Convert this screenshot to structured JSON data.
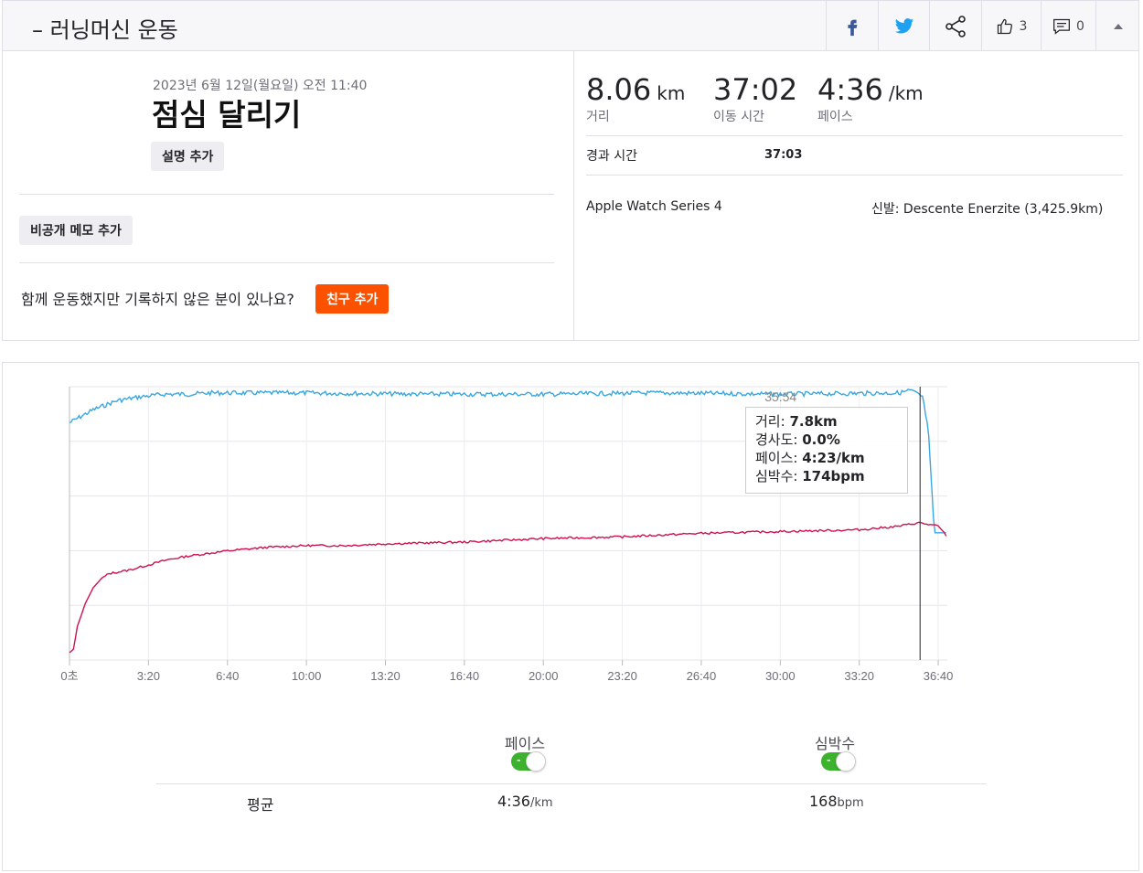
{
  "header": {
    "title": "– 러닝머신 운동",
    "kudos_count": "3",
    "comment_count": "0"
  },
  "activity": {
    "date": "2023년 6월 12일(월요일) 오전 11:40",
    "name": "점심 달리기",
    "add_description": "설명 추가",
    "add_private_note": "비공개 메모 추가",
    "friends_prompt": "함께 운동했지만 기록하지 않은 분이 있나요?",
    "add_friends": "친구 추가"
  },
  "stats": {
    "distance_value": "8.06",
    "distance_unit": "km",
    "distance_label": "거리",
    "moving_time_value": "37:02",
    "moving_time_label": "이동 시간",
    "pace_value": "4:36",
    "pace_unit": "/km",
    "pace_label": "페이스",
    "elapsed_label": "경과 시간",
    "elapsed_value": "37:03",
    "device": "Apple Watch Series 4",
    "shoes": "신발: Descente Enerzite (3,425.9km)"
  },
  "chart_data": {
    "type": "line",
    "x_unit": "seconds",
    "x_ticks": [
      "0초",
      "3:20",
      "6:40",
      "10:00",
      "13:20",
      "16:40",
      "20:00",
      "23:20",
      "26:40",
      "30:00",
      "33:20",
      "36:40"
    ],
    "xlim": [
      0,
      2223
    ],
    "series": [
      {
        "name": "페이스",
        "color": "#3aa7e0",
        "unit": "/km",
        "x": [
          0,
          60,
          120,
          180,
          240,
          300,
          360,
          480,
          600,
          900,
          1200,
          1500,
          1800,
          2100,
          2130,
          2160,
          2175,
          2190,
          2223
        ],
        "y": [
          4.55,
          4.45,
          4.38,
          4.35,
          4.33,
          4.33,
          4.32,
          4.32,
          4.32,
          4.33,
          4.33,
          4.32,
          4.33,
          4.32,
          4.3,
          4.35,
          4.6,
          5.4,
          5.4
        ]
      },
      {
        "name": "심박수",
        "color": "#d0114d",
        "unit": "bpm",
        "x": [
          0,
          10,
          20,
          40,
          60,
          80,
          100,
          150,
          200,
          250,
          300,
          400,
          500,
          600,
          700,
          800,
          1000,
          1200,
          1400,
          1600,
          1800,
          2000,
          2100,
          2150,
          2200,
          2223
        ],
        "y": [
          100,
          102,
          115,
          128,
          137,
          142,
          145,
          147,
          150,
          153,
          155,
          158,
          160,
          161,
          161,
          162,
          163,
          165,
          166,
          168,
          169,
          170,
          172,
          174,
          172,
          166
        ]
      }
    ],
    "cursor": {
      "time": "35:54",
      "distance": "7.8km",
      "grade": "0.0%",
      "pace": "4:23/km",
      "heart_rate": "174bpm"
    },
    "tooltip_labels": {
      "distance": "거리:",
      "grade": "경사도:",
      "pace": "페이스:",
      "heart_rate": "심박수:"
    },
    "legend": [
      {
        "label": "페이스",
        "on": true
      },
      {
        "label": "심박수",
        "on": true
      }
    ],
    "averages": {
      "label": "평균",
      "pace": "4:36",
      "pace_unit": "/km",
      "hr": "168",
      "hr_unit": "bpm"
    }
  }
}
